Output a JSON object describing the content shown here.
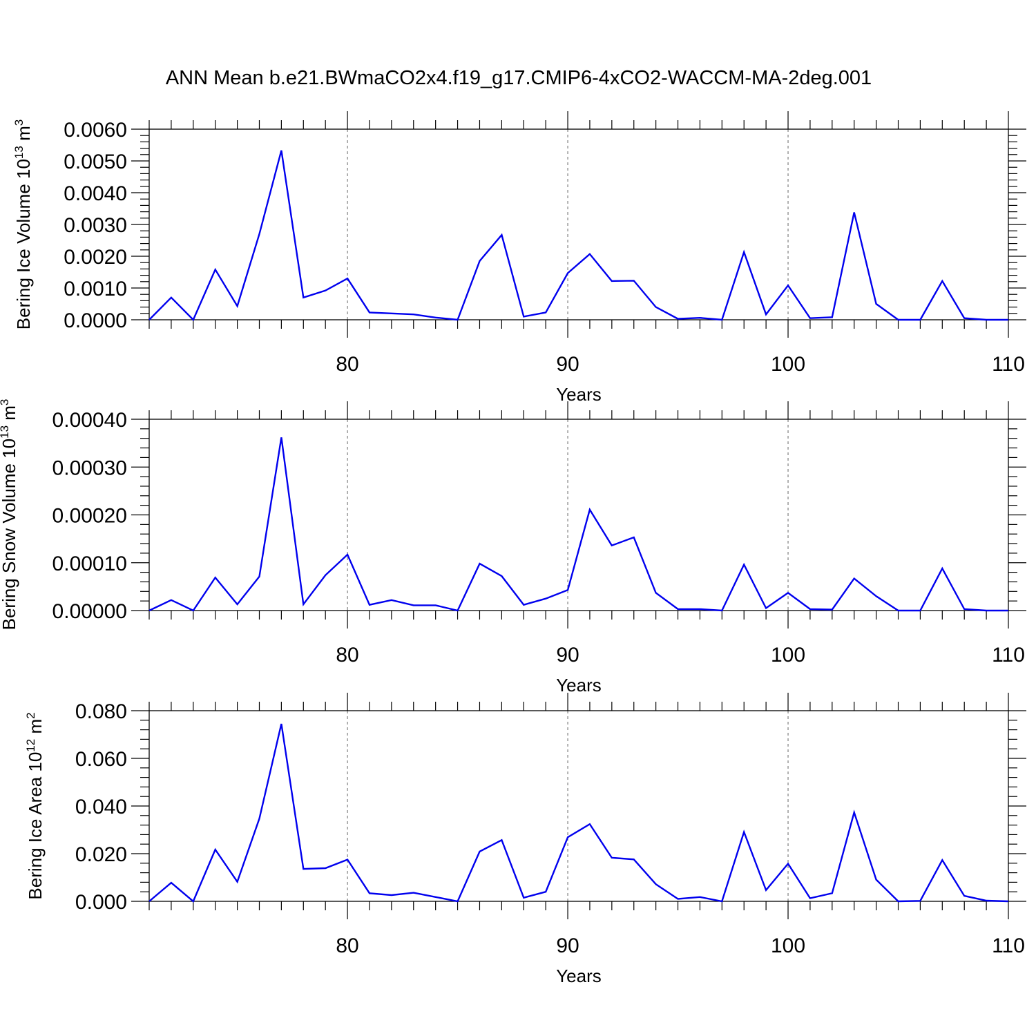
{
  "figure": {
    "title": "ANN Mean b.e21.BWmaCO2x4.f19_g17.CMIP6-4xCO2-WACCM-MA-2deg.001"
  },
  "chart_data": [
    {
      "type": "line",
      "title": "",
      "xlabel": "Years",
      "ylabel": "Bering Ice Volume 10",
      "ylabel_exp": "13",
      "ylabel_unit": " m",
      "ylabel_unit_exp": "3",
      "xlim": [
        71,
        110
      ],
      "ylim": [
        0,
        0.006
      ],
      "x_ticks": [
        80,
        90,
        100,
        110
      ],
      "y_ticks": [
        "0.0000",
        "0.0010",
        "0.0020",
        "0.0030",
        "0.0040",
        "0.0050",
        "0.0060"
      ],
      "y_tick_values": [
        0,
        0.001,
        0.002,
        0.003,
        0.004,
        0.005,
        0.006
      ],
      "grid": "dashed vertical at x major ticks",
      "color": "#0000ee",
      "x": [
        71,
        72,
        73,
        74,
        75,
        76,
        77,
        78,
        79,
        80,
        81,
        82,
        83,
        84,
        85,
        86,
        87,
        88,
        89,
        90,
        91,
        92,
        93,
        94,
        95,
        96,
        97,
        98,
        99,
        100,
        101,
        102,
        103,
        104,
        105,
        106,
        107,
        108,
        109,
        110
      ],
      "values": [
        0.0,
        0.0007,
        0.0,
        0.00158,
        0.00043,
        0.0027,
        0.00533,
        0.0007,
        0.00092,
        0.0013,
        0.00023,
        0.0002,
        0.00017,
        7e-05,
        0.0,
        0.00185,
        0.00267,
        0.0001,
        0.00023,
        0.00147,
        0.00207,
        0.00122,
        0.00123,
        0.0004,
        3e-05,
        6e-05,
        0.0,
        0.00213,
        0.00017,
        0.00108,
        5e-05,
        8e-05,
        0.00338,
        0.0005,
        0.0,
        0.0,
        0.00122,
        5e-05,
        0.0,
        0.0
      ]
    },
    {
      "type": "line",
      "title": "",
      "xlabel": "Years",
      "ylabel": "Bering Snow Volume 10",
      "ylabel_exp": "13",
      "ylabel_unit": " m",
      "ylabel_unit_exp": "3",
      "xlim": [
        71,
        110
      ],
      "ylim": [
        0,
        0.0004
      ],
      "x_ticks": [
        80,
        90,
        100,
        110
      ],
      "y_ticks": [
        "0.00000",
        "0.00010",
        "0.00020",
        "0.00030",
        "0.00040"
      ],
      "y_tick_values": [
        0,
        0.0001,
        0.0002,
        0.0003,
        0.0004
      ],
      "grid": "dashed vertical at x major ticks",
      "color": "#0000ee",
      "x": [
        71,
        72,
        73,
        74,
        75,
        76,
        77,
        78,
        79,
        80,
        81,
        82,
        83,
        84,
        85,
        86,
        87,
        88,
        89,
        90,
        91,
        92,
        93,
        94,
        95,
        96,
        97,
        98,
        99,
        100,
        101,
        102,
        103,
        104,
        105,
        106,
        107,
        108,
        109,
        110
      ],
      "values": [
        0.0,
        2.2e-05,
        0.0,
        6.9e-05,
        1.3e-05,
        7.1e-05,
        0.000362,
        1.3e-05,
        7.4e-05,
        0.000117,
        1.2e-05,
        2.2e-05,
        1.1e-05,
        1.1e-05,
        0.0,
        9.8e-05,
        7.2e-05,
        1.2e-05,
        2.5e-05,
        4.3e-05,
        0.000211,
        0.000136,
        0.000153,
        3.7e-05,
        3e-06,
        3e-06,
        0.0,
        9.6e-05,
        5e-06,
        3.7e-05,
        3e-06,
        2e-06,
        6.7e-05,
        3e-05,
        0.0,
        0.0,
        8.8e-05,
        3e-06,
        0.0,
        0.0
      ]
    },
    {
      "type": "line",
      "title": "",
      "xlabel": "Years",
      "ylabel": "Bering Ice Area 10",
      "ylabel_exp": "12",
      "ylabel_unit": " m",
      "ylabel_unit_exp": "2",
      "xlim": [
        71,
        110
      ],
      "ylim": [
        0,
        0.08
      ],
      "x_ticks": [
        80,
        90,
        100,
        110
      ],
      "y_ticks": [
        "0.000",
        "0.020",
        "0.040",
        "0.060",
        "0.080"
      ],
      "y_tick_values": [
        0,
        0.02,
        0.04,
        0.06,
        0.08
      ],
      "grid": "dashed vertical at x major ticks",
      "color": "#0000ee",
      "x": [
        71,
        72,
        73,
        74,
        75,
        76,
        77,
        78,
        79,
        80,
        81,
        82,
        83,
        84,
        85,
        86,
        87,
        88,
        89,
        90,
        91,
        92,
        93,
        94,
        95,
        96,
        97,
        98,
        99,
        100,
        101,
        102,
        103,
        104,
        105,
        106,
        107,
        108,
        109,
        110
      ],
      "values": [
        0.0,
        0.0078,
        0.0,
        0.0217,
        0.0082,
        0.0347,
        0.0745,
        0.0136,
        0.0139,
        0.0175,
        0.0034,
        0.0026,
        0.0036,
        0.0018,
        0.0,
        0.0209,
        0.0257,
        0.0015,
        0.004,
        0.0269,
        0.0324,
        0.0183,
        0.0176,
        0.0072,
        0.001,
        0.0018,
        0.0,
        0.0291,
        0.0047,
        0.0158,
        0.0013,
        0.0034,
        0.0373,
        0.0091,
        0.0,
        0.0002,
        0.0173,
        0.0023,
        0.0003,
        0.0
      ]
    }
  ]
}
